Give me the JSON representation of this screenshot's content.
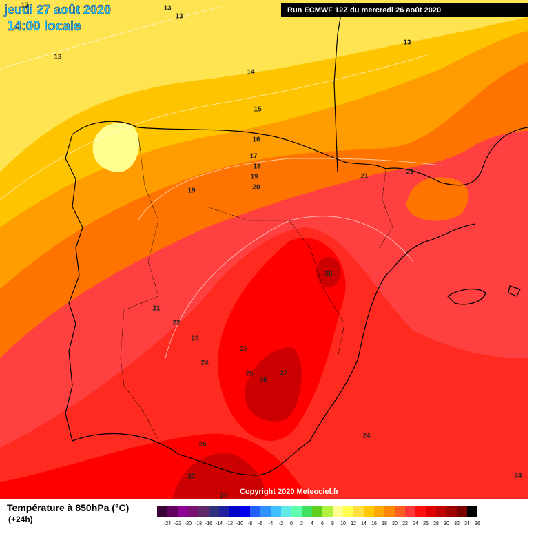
{
  "header": {
    "date": "jeudi 27 août 2020",
    "time": "14:00 locale",
    "run": "Run ECMWF 12Z du mercredi 26 août 2020"
  },
  "contour_labels": [
    "12",
    "13",
    "13",
    "13",
    "13",
    "14",
    "15",
    "16",
    "17",
    "18",
    "19",
    "20",
    "19",
    "21",
    "21",
    "26",
    "21",
    "22",
    "23",
    "24",
    "25",
    "25",
    "26",
    "27",
    "24",
    "26",
    "27",
    "28",
    "24"
  ],
  "copyright": "Copyright 2020 Meteociel.fr",
  "legend": {
    "title": "Température à 850hPa (°C)",
    "lead": "(+24h)",
    "ticks": [
      -24,
      -22,
      -20,
      -18,
      -16,
      -14,
      -12,
      -10,
      -8,
      -6,
      -4,
      -2,
      0,
      2,
      4,
      6,
      8,
      10,
      12,
      14,
      16,
      18,
      20,
      22,
      24,
      26,
      28,
      30,
      32,
      34,
      36
    ],
    "colors": [
      "#3a0038",
      "#600060",
      "#8c0094",
      "#7a1070",
      "#602868",
      "#30307c",
      "#2020a0",
      "#0000c8",
      "#0000ee",
      "#2060ff",
      "#3090ff",
      "#40c0ff",
      "#60e8e8",
      "#60ffb0",
      "#40e060",
      "#60d020",
      "#b0f040",
      "#ffff90",
      "#ffff50",
      "#ffe040",
      "#ffc800",
      "#ffa800",
      "#ff8800",
      "#ff6020",
      "#ff3838",
      "#ff1010",
      "#e00000",
      "#c00000",
      "#a00000",
      "#780000",
      "#000000"
    ]
  }
}
